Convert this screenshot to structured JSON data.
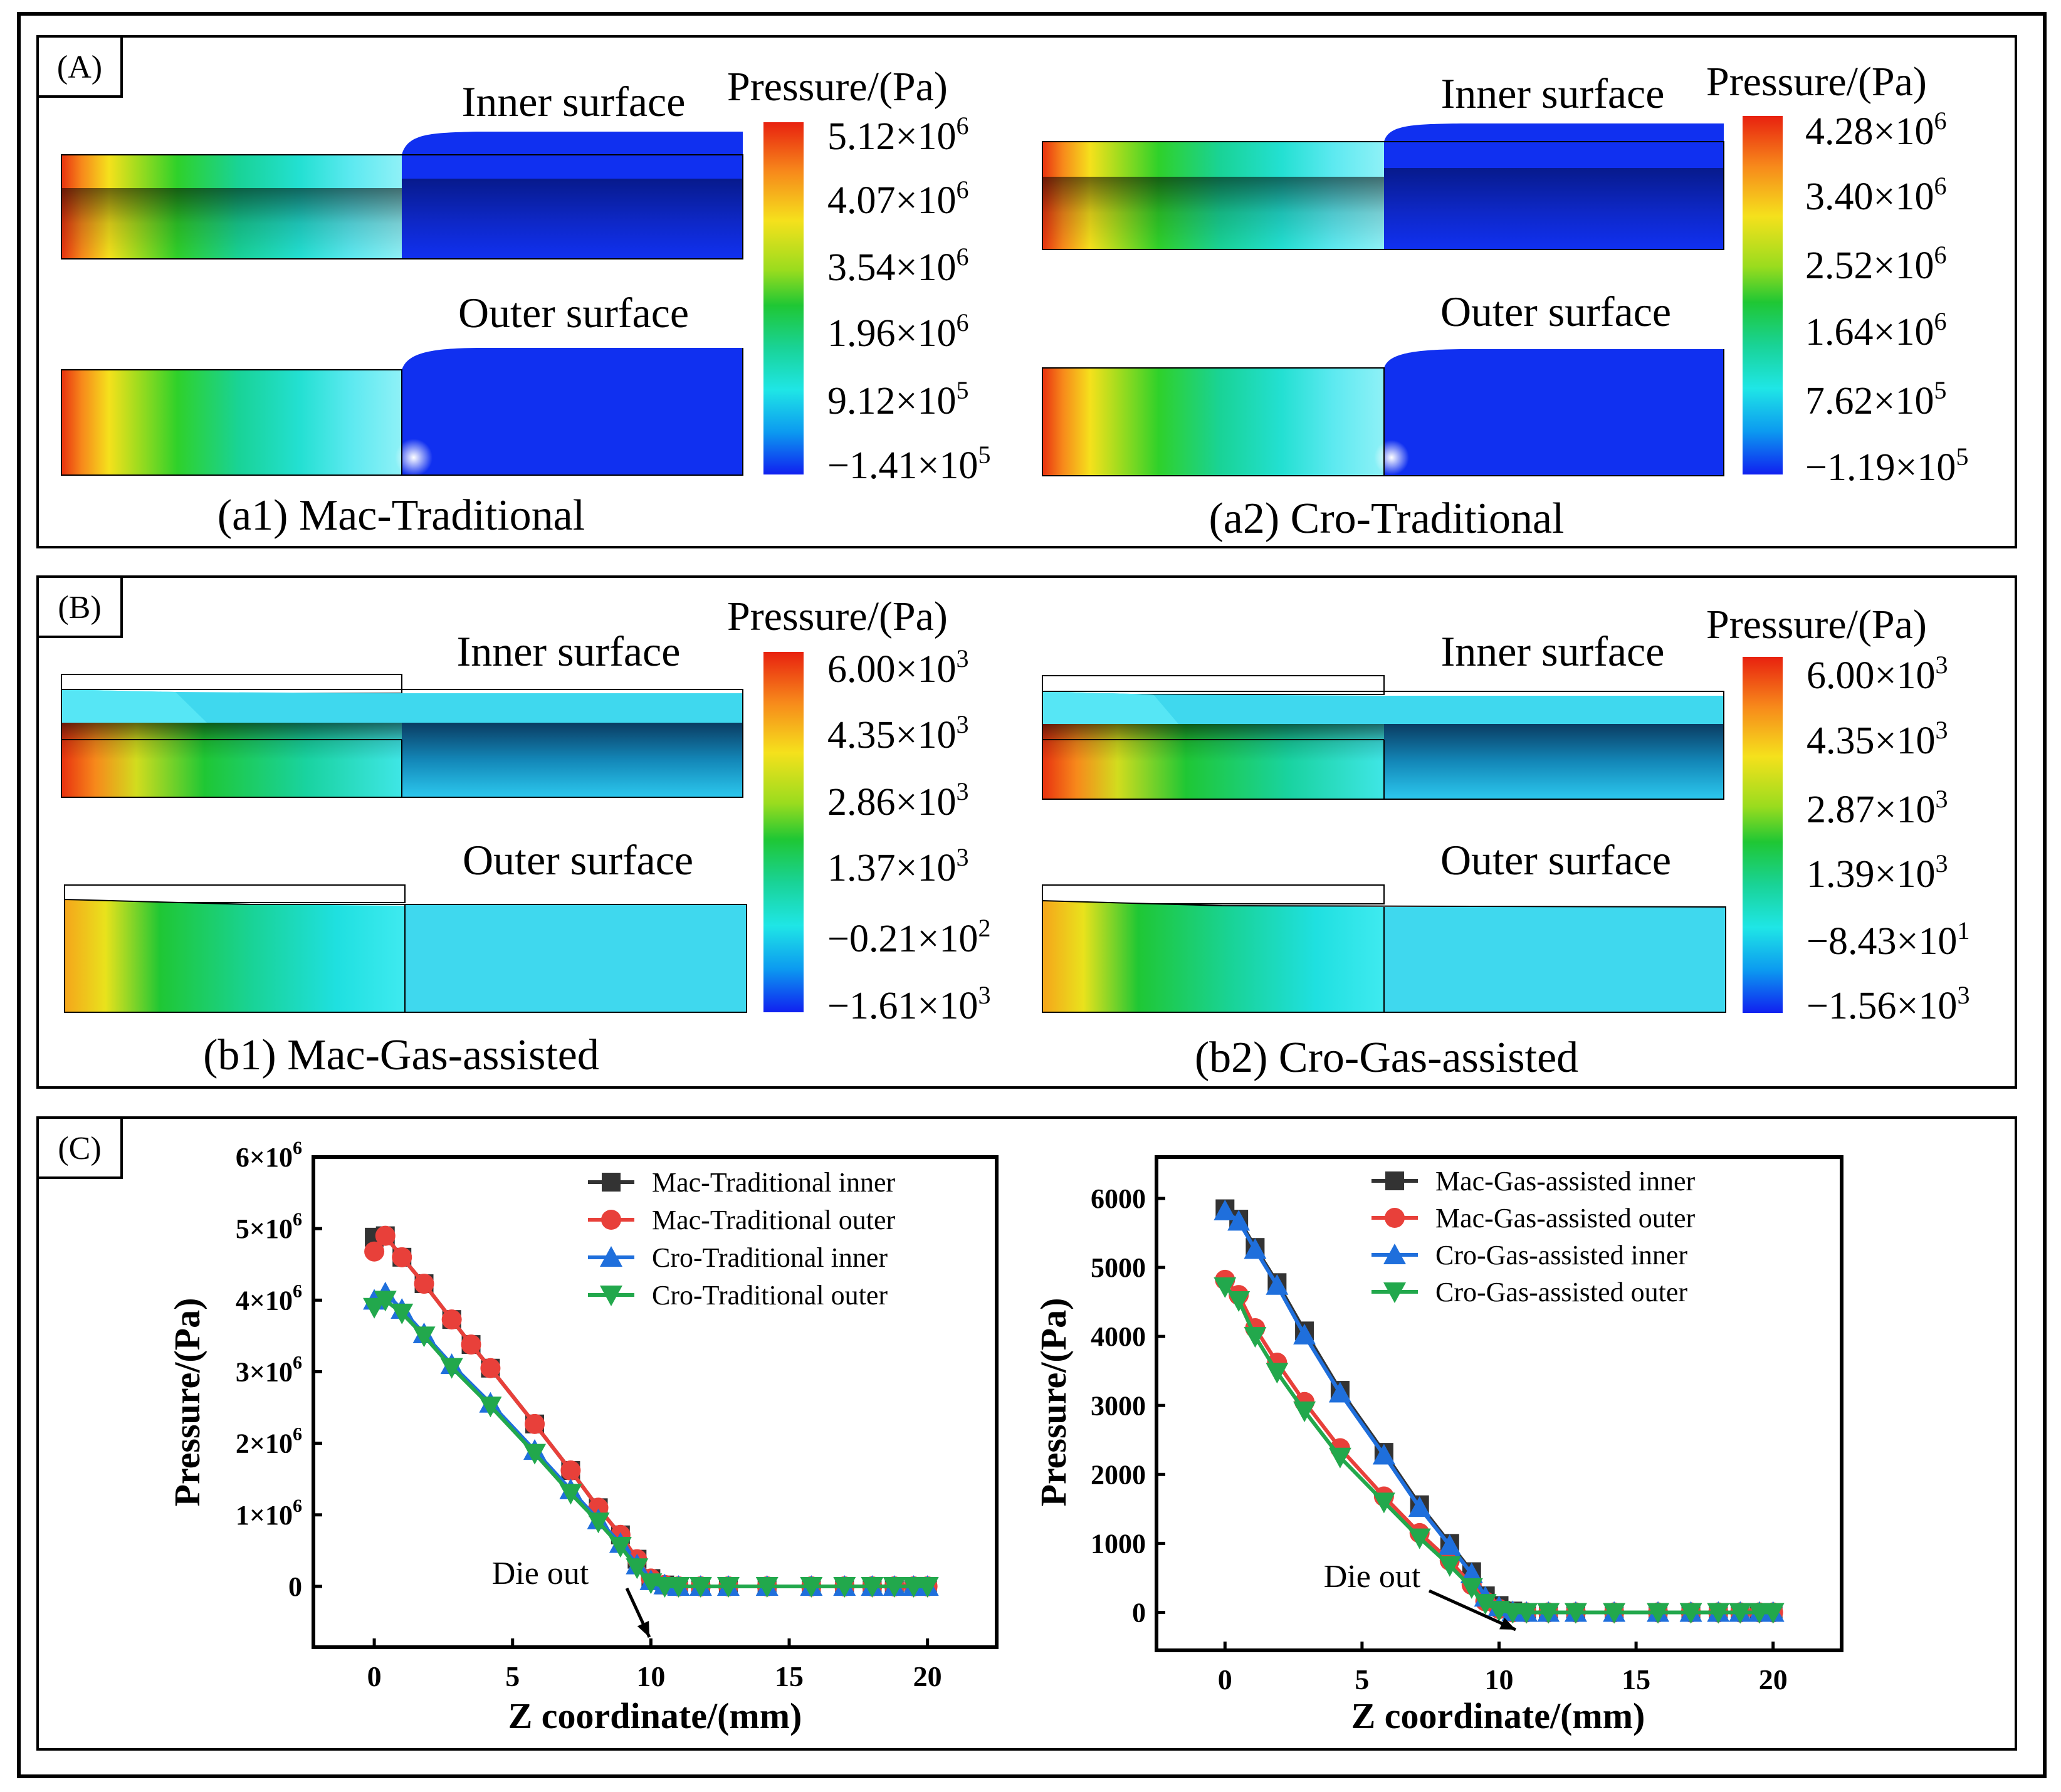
{
  "panels": {
    "A": {
      "label": "(A)",
      "left": {
        "caption": "(a1) Mac-Traditional",
        "inner_label": "Inner surface",
        "outer_label": "Outer surface",
        "colorbar_title": "Pressure/(Pa)",
        "ticks": [
          {
            "mant": "5.12",
            "exp": "6"
          },
          {
            "mant": "4.07",
            "exp": "6"
          },
          {
            "mant": "3.54",
            "exp": "6"
          },
          {
            "mant": "1.96",
            "exp": "6"
          },
          {
            "mant": "9.12",
            "exp": "5"
          },
          {
            "mant": "−1.41",
            "exp": "5"
          }
        ]
      },
      "right": {
        "caption": "(a2) Cro-Traditional",
        "inner_label": "Inner surface",
        "outer_label": "Outer surface",
        "colorbar_title": "Pressure/(Pa)",
        "ticks": [
          {
            "mant": "4.28",
            "exp": "6"
          },
          {
            "mant": "3.40",
            "exp": "6"
          },
          {
            "mant": "2.52",
            "exp": "6"
          },
          {
            "mant": "1.64",
            "exp": "6"
          },
          {
            "mant": "7.62",
            "exp": "5"
          },
          {
            "mant": "−1.19",
            "exp": "5"
          }
        ]
      }
    },
    "B": {
      "label": "(B)",
      "left": {
        "caption": "(b1) Mac-Gas-assisted",
        "inner_label": "Inner surface",
        "outer_label": "Outer surface",
        "colorbar_title": "Pressure/(Pa)",
        "ticks": [
          {
            "mant": "6.00",
            "exp": "3"
          },
          {
            "mant": "4.35",
            "exp": "3"
          },
          {
            "mant": "2.86",
            "exp": "3"
          },
          {
            "mant": "1.37",
            "exp": "3"
          },
          {
            "mant": "−0.21",
            "exp": "2"
          },
          {
            "mant": "−1.61",
            "exp": "3"
          }
        ]
      },
      "right": {
        "caption": "(b2) Cro-Gas-assisted",
        "inner_label": "Inner surface",
        "outer_label": "Outer surface",
        "colorbar_title": "Pressure/(Pa)",
        "ticks": [
          {
            "mant": "6.00",
            "exp": "3"
          },
          {
            "mant": "4.35",
            "exp": "3"
          },
          {
            "mant": "2.87",
            "exp": "3"
          },
          {
            "mant": "1.39",
            "exp": "3"
          },
          {
            "mant": "−8.43",
            "exp": "1"
          },
          {
            "mant": "−1.56",
            "exp": "3"
          }
        ]
      }
    },
    "C": {
      "label": "(C)"
    }
  },
  "colors": {
    "black": "#333333",
    "red": "#e8403a",
    "blue": "#1f6fdc",
    "green": "#22a84c",
    "pos": [
      "#e8310f",
      "#f7891b",
      "#f5e11c",
      "#a5dc1e",
      "#1fc734",
      "#19d396",
      "#1fe6e6",
      "#0c9af0",
      "#1030f0"
    ]
  },
  "chart_data": [
    {
      "type": "line",
      "ylabel": "Pressure/(Pa)",
      "xlabel": "Z coordinate/(mm)",
      "xlim": [
        -2.2,
        22.5
      ],
      "ylim": [
        -850000,
        6000000
      ],
      "xticks": [
        "0",
        "5",
        "10",
        "15",
        "20"
      ],
      "xtick_values": [
        0,
        5,
        10,
        15,
        20
      ],
      "yticks": [
        {
          "mant": "0",
          "exp": ""
        },
        {
          "mant": "1×10",
          "exp": "6"
        },
        {
          "mant": "2×10",
          "exp": "6"
        },
        {
          "mant": "3×10",
          "exp": "6"
        },
        {
          "mant": "4×10",
          "exp": "6"
        },
        {
          "mant": "5×10",
          "exp": "6"
        },
        {
          "mant": "6×10",
          "exp": "6"
        }
      ],
      "ytick_values": [
        0,
        1000000,
        2000000,
        3000000,
        4000000,
        5000000,
        6000000
      ],
      "annotation": {
        "text": "Die out",
        "x": 10.0,
        "y": 0
      },
      "series": [
        {
          "name": "Mac-Traditional inner",
          "marker": "square",
          "color": "black",
          "x": [
            0,
            0.4,
            1.0,
            1.8,
            2.8,
            3.5,
            4.2,
            5.8,
            7.1,
            8.1,
            8.9,
            9.5,
            10.0,
            10.5,
            11.0,
            11.8,
            12.8,
            14.2,
            15.8,
            17.0,
            18.0,
            18.8,
            19.5,
            20.0
          ],
          "y": [
            4880000,
            4900000,
            4600000,
            4230000,
            3730000,
            3380000,
            3050000,
            2270000,
            1620000,
            1100000,
            720000,
            380000,
            110000,
            20000,
            0,
            0,
            0,
            0,
            0,
            0,
            0,
            0,
            0,
            0
          ]
        },
        {
          "name": "Mac-Traditional outer",
          "marker": "circle",
          "color": "red",
          "x": [
            0,
            0.4,
            1.0,
            1.8,
            2.8,
            3.5,
            4.2,
            5.8,
            7.1,
            8.1,
            8.9,
            9.5,
            10.0,
            10.5,
            11.0,
            11.8,
            12.8,
            14.2,
            15.8,
            17.0,
            18.0,
            18.8,
            19.5,
            20.0
          ],
          "y": [
            4680000,
            4900000,
            4600000,
            4230000,
            3730000,
            3380000,
            3050000,
            2270000,
            1620000,
            1100000,
            720000,
            380000,
            110000,
            20000,
            0,
            0,
            0,
            0,
            0,
            0,
            0,
            0,
            0,
            0
          ]
        },
        {
          "name": "Cro-Traditional inner",
          "marker": "triangle-up",
          "color": "blue",
          "x": [
            0,
            0.4,
            1.0,
            1.8,
            2.8,
            4.2,
            5.8,
            7.1,
            8.1,
            8.9,
            9.5,
            10.0,
            10.5,
            11.0,
            11.8,
            12.8,
            14.2,
            15.8,
            17.0,
            18.0,
            18.8,
            19.5,
            20.0
          ],
          "y": [
            4000000,
            4100000,
            3870000,
            3530000,
            3100000,
            2560000,
            1900000,
            1350000,
            930000,
            600000,
            300000,
            80000,
            20000,
            0,
            0,
            0,
            0,
            0,
            0,
            0,
            0,
            0,
            0
          ]
        },
        {
          "name": "Cro-Traditional outer",
          "marker": "triangle-down",
          "color": "green",
          "x": [
            0,
            0.4,
            1.0,
            1.8,
            2.8,
            4.2,
            5.8,
            7.1,
            8.1,
            8.9,
            9.5,
            10.0,
            10.5,
            11.0,
            11.8,
            12.8,
            14.2,
            15.8,
            17.0,
            18.0,
            18.8,
            19.5,
            20.0
          ],
          "y": [
            3900000,
            4000000,
            3820000,
            3500000,
            3060000,
            2520000,
            1860000,
            1300000,
            900000,
            560000,
            260000,
            50000,
            0,
            0,
            0,
            0,
            0,
            0,
            0,
            0,
            0,
            0,
            0
          ]
        }
      ]
    },
    {
      "type": "line",
      "ylabel": "Pressure/(Pa)",
      "xlabel": "Z coordinate/(mm)",
      "xlim": [
        -2.5,
        22.5
      ],
      "ylim": [
        -550,
        6600
      ],
      "xticks": [
        "0",
        "5",
        "10",
        "15",
        "20"
      ],
      "xtick_values": [
        0,
        5,
        10,
        15,
        20
      ],
      "yticks": [
        {
          "mant": "0",
          "exp": ""
        },
        {
          "mant": "1000",
          "exp": ""
        },
        {
          "mant": "2000",
          "exp": ""
        },
        {
          "mant": "3000",
          "exp": ""
        },
        {
          "mant": "4000",
          "exp": ""
        },
        {
          "mant": "5000",
          "exp": ""
        },
        {
          "mant": "6000",
          "exp": ""
        }
      ],
      "ytick_values": [
        0,
        1000,
        2000,
        3000,
        4000,
        5000,
        6000
      ],
      "annotation": {
        "text": "Die out",
        "x": 10.0,
        "y": 0
      },
      "series": [
        {
          "name": "Mac-Gas-assisted inner",
          "marker": "square",
          "color": "black",
          "x": [
            0,
            0.5,
            1.1,
            1.9,
            2.9,
            4.2,
            5.8,
            7.1,
            8.2,
            9.0,
            9.5,
            10.0,
            10.5,
            11.0,
            11.8,
            12.8,
            14.2,
            15.8,
            17.0,
            18.0,
            18.8,
            19.5,
            20.0
          ],
          "y": [
            5850,
            5700,
            5290,
            4780,
            4080,
            3220,
            2320,
            1560,
            1000,
            590,
            240,
            100,
            20,
            0,
            0,
            0,
            0,
            0,
            0,
            0,
            0,
            0,
            0
          ]
        },
        {
          "name": "Mac-Gas-assisted outer",
          "marker": "circle",
          "color": "red",
          "x": [
            0,
            0.5,
            1.1,
            1.9,
            2.9,
            4.2,
            5.8,
            7.1,
            8.2,
            9.0,
            9.5,
            10.0,
            10.5,
            11.0,
            11.8,
            12.8,
            14.2,
            15.8,
            17.0,
            18.0,
            18.8,
            19.5,
            20.0
          ],
          "y": [
            4820,
            4600,
            4120,
            3620,
            3050,
            2380,
            1680,
            1150,
            750,
            400,
            160,
            50,
            0,
            0,
            0,
            0,
            0,
            0,
            0,
            0,
            0,
            0,
            0
          ]
        },
        {
          "name": "Cro-Gas-assisted inner",
          "marker": "triangle-up",
          "color": "blue",
          "x": [
            0,
            0.5,
            1.1,
            1.9,
            2.9,
            4.2,
            5.8,
            7.1,
            8.2,
            9.0,
            9.5,
            10.0,
            10.5,
            11.0,
            11.8,
            12.8,
            14.2,
            15.8,
            17.0,
            18.0,
            18.8,
            19.5,
            20.0
          ],
          "y": [
            5820,
            5670,
            5260,
            4740,
            4020,
            3180,
            2280,
            1520,
            970,
            560,
            220,
            80,
            10,
            0,
            0,
            0,
            0,
            0,
            0,
            0,
            0,
            0,
            0
          ]
        },
        {
          "name": "Cro-Gas-assisted outer",
          "marker": "triangle-down",
          "color": "green",
          "x": [
            0,
            0.5,
            1.1,
            1.9,
            2.9,
            4.2,
            5.8,
            7.1,
            8.2,
            9.0,
            9.5,
            10.0,
            10.5,
            11.0,
            11.8,
            12.8,
            14.2,
            15.8,
            17.0,
            18.0,
            18.8,
            19.5,
            20.0
          ],
          "y": [
            4720,
            4520,
            4000,
            3480,
            2920,
            2250,
            1600,
            1080,
            680,
            360,
            130,
            30,
            0,
            0,
            0,
            0,
            0,
            0,
            0,
            0,
            0,
            0,
            0
          ]
        }
      ]
    }
  ]
}
